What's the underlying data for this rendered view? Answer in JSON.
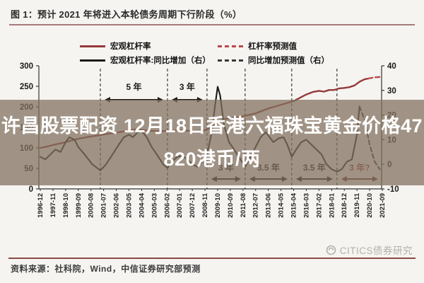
{
  "title": "图 1：预计 2021 年将进入本轮债务周期下行阶段（%）",
  "legend": {
    "items": [
      {
        "label": "宏观杠杆率",
        "color": "#943b38",
        "dash": false
      },
      {
        "label": "杠杆率预测值",
        "color": "#b9494f",
        "dash": true
      },
      {
        "label": "宏观杠杆率:同比增加（右）",
        "color": "#1a1a1a",
        "dash": false
      },
      {
        "label": "同比增加预测值（右）",
        "color": "#3a3a3a",
        "dash": true
      }
    ]
  },
  "overlay": {
    "line1": "许昌股票配资 12月18日香港六福珠宝黄金价格47",
    "line2": "820港币/两"
  },
  "watermark": "CITICS债券研究",
  "source": "资料来源：社科院，Wind，中信证券研究部预测",
  "colors": {
    "leverage_red": "#943b38",
    "forecast_red": "#b9494f",
    "yoy_black": "#1a1a1a",
    "yoy_forecast_black": "#3a3a3a",
    "axis": "#333333",
    "annotation_red": "#a63c2e",
    "overlay_bg": "rgba(130,113,95,0.74)",
    "title_rule": "#a57a7a",
    "bottom_rule": "#8a4a44",
    "watermark_gray": "#b6b1a8"
  },
  "chart_data": {
    "type": "line",
    "title": "预计2021年将进入本轮债务周期下行阶段（%）",
    "x_labels": [
      "1996-12",
      "1997-11",
      "1998-10",
      "1999-09",
      "2000-08",
      "2001-07",
      "2002-06",
      "2003-05",
      "2004-04",
      "2005-03",
      "2006-02",
      "2007-01",
      "2007-12",
      "2008-11",
      "2009-10",
      "2010-09",
      "2011-08",
      "2012-07",
      "2013-06",
      "2014-05",
      "2015-04",
      "2016-03",
      "2017-02",
      "2018-01",
      "2018-12",
      "2019-11",
      "2020-10",
      "2021-09"
    ],
    "left_axis": {
      "ticks": [
        300,
        250,
        200,
        150,
        100,
        50,
        0
      ],
      "range": [
        0,
        300
      ]
    },
    "right_axis": {
      "ticks": [
        40,
        30,
        20,
        10,
        0,
        -10
      ],
      "range": [
        -10,
        40
      ]
    },
    "grid": false,
    "legend_position": "top",
    "series": [
      {
        "name": "宏观杠杆率",
        "axis": "left",
        "style": "solid",
        "color": "#943b38",
        "width": 2.4,
        "points": [
          [
            0,
            100
          ],
          [
            0.5,
            103
          ],
          [
            1,
            107
          ],
          [
            2,
            114
          ],
          [
            3,
            122
          ],
          [
            4,
            128
          ],
          [
            4.74,
            131
          ],
          [
            5.5,
            135
          ],
          [
            6,
            137
          ],
          [
            7,
            142
          ],
          [
            7.5,
            145
          ],
          [
            8,
            144
          ],
          [
            8.5,
            142
          ],
          [
            9,
            141
          ],
          [
            10,
            141
          ],
          [
            11,
            143
          ],
          [
            12,
            141
          ],
          [
            13,
            143
          ],
          [
            13.5,
            150
          ],
          [
            14,
            162
          ],
          [
            14.5,
            170
          ],
          [
            15,
            173
          ],
          [
            16,
            177
          ],
          [
            17,
            184
          ],
          [
            18,
            196
          ],
          [
            19,
            205
          ],
          [
            20,
            214
          ],
          [
            20.5,
            222
          ],
          [
            21,
            230
          ],
          [
            21.5,
            236
          ],
          [
            22,
            239
          ],
          [
            22.4,
            237
          ],
          [
            22.8,
            241
          ],
          [
            23.2,
            241
          ],
          [
            23.6,
            245
          ],
          [
            24,
            246
          ],
          [
            24.4,
            248
          ],
          [
            24.8,
            252
          ],
          [
            25.2,
            261
          ],
          [
            25.6,
            267
          ],
          [
            25.9,
            269
          ]
        ]
      },
      {
        "name": "杠杆率预测值",
        "axis": "left",
        "style": "dashed",
        "color": "#b9494f",
        "width": 2.4,
        "points": [
          [
            25.9,
            269
          ],
          [
            26.4,
            272
          ],
          [
            27,
            273
          ]
        ]
      },
      {
        "name": "宏观杠杆率:同比增加（右）",
        "axis": "right",
        "style": "solid",
        "color": "#1a1a1a",
        "width": 2.1,
        "points": [
          [
            0,
            3
          ],
          [
            0.4,
            2
          ],
          [
            0.8,
            4
          ],
          [
            1.2,
            6
          ],
          [
            1.6,
            5
          ],
          [
            2,
            9
          ],
          [
            2.3,
            11
          ],
          [
            2.7,
            10
          ],
          [
            3,
            7
          ],
          [
            3.5,
            4
          ],
          [
            4.1,
            0
          ],
          [
            4.74,
            -2.5
          ],
          [
            5.2,
            0
          ],
          [
            5.7,
            4
          ],
          [
            6.2,
            8
          ],
          [
            6.6,
            11
          ],
          [
            7,
            12
          ],
          [
            7.3,
            11
          ],
          [
            7.7,
            13
          ],
          [
            8,
            13.5
          ],
          [
            8.4,
            11
          ],
          [
            8.8,
            7
          ],
          [
            9.2,
            4
          ],
          [
            9.7,
            0
          ],
          [
            10.04,
            -1.5
          ],
          [
            10.4,
            1
          ],
          [
            10.8,
            3
          ],
          [
            11.2,
            3.5
          ],
          [
            11.6,
            2
          ],
          [
            12,
            0
          ],
          [
            12.4,
            -1
          ],
          [
            12.8,
            1
          ],
          [
            13.16,
            4
          ],
          [
            13.5,
            12
          ],
          [
            13.8,
            24
          ],
          [
            14,
            31.5
          ],
          [
            14.2,
            28
          ],
          [
            14.5,
            16
          ],
          [
            14.9,
            9
          ],
          [
            15.3,
            6
          ],
          [
            15.8,
            2
          ],
          [
            16.17,
            -1
          ],
          [
            16.6,
            3
          ],
          [
            17,
            7
          ],
          [
            17.4,
            11
          ],
          [
            17.8,
            13
          ],
          [
            18.1,
            11
          ],
          [
            18.4,
            9
          ],
          [
            18.8,
            10.5
          ],
          [
            19.2,
            11
          ],
          [
            19.5,
            8
          ],
          [
            19.85,
            3
          ],
          [
            20.2,
            6
          ],
          [
            20.6,
            9
          ],
          [
            21,
            10
          ],
          [
            21.4,
            8
          ],
          [
            21.8,
            6
          ],
          [
            22.2,
            4
          ],
          [
            22.6,
            0
          ],
          [
            23,
            -2
          ],
          [
            23.42,
            -3
          ],
          [
            23.8,
            -2
          ],
          [
            24.2,
            1
          ],
          [
            24.6,
            2
          ],
          [
            25,
            12
          ],
          [
            25.2,
            23.5
          ]
        ]
      },
      {
        "name": "同比增加预测值（右）",
        "axis": "right",
        "style": "dashed",
        "color": "#3a3a3a",
        "width": 2.1,
        "points": [
          [
            25.2,
            23.5
          ],
          [
            25.6,
            18
          ],
          [
            26,
            8
          ],
          [
            26.4,
            1
          ],
          [
            26.8,
            -2
          ]
        ]
      }
    ],
    "phase_markers": {
      "vlines_idx": [
        4.74,
        10.04,
        13.16,
        16.17,
        19.85,
        23.42
      ],
      "top_spans": [
        {
          "label": "5 年",
          "from": 4.74,
          "to": 10.04,
          "highlight": false
        },
        {
          "label": "3 年",
          "from": 10.04,
          "to": 13.16,
          "highlight": false
        }
      ],
      "bottom_spans": [
        {
          "label": "3 年",
          "from": 13.16,
          "to": 16.17,
          "highlight": false
        },
        {
          "label": "3.5 年",
          "from": 16.17,
          "to": 19.85,
          "highlight": false
        },
        {
          "label": "3.5 年",
          "from": 19.85,
          "to": 23.42,
          "highlight": false
        },
        {
          "label": "3 年?",
          "from": 23.42,
          "to": 27,
          "highlight": true
        }
      ]
    }
  }
}
